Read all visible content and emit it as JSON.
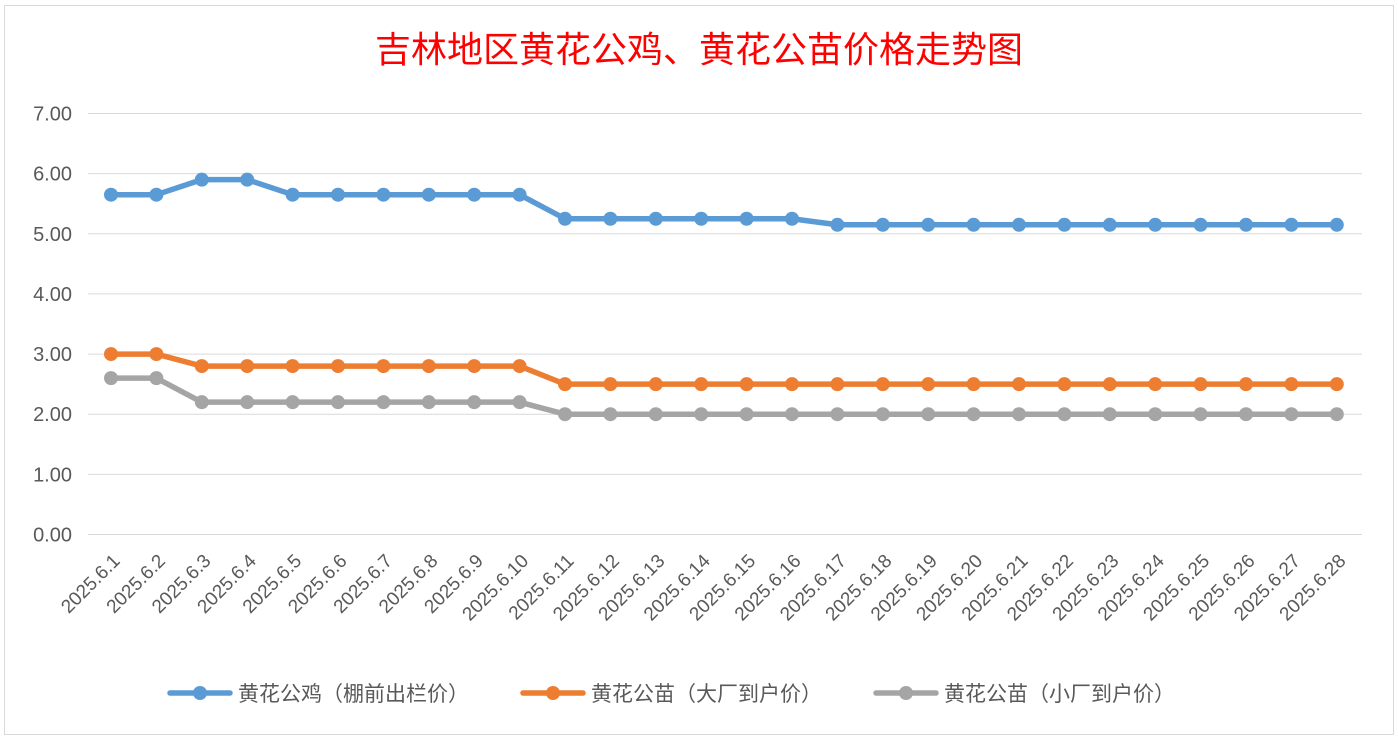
{
  "chart_data": {
    "type": "line",
    "title": "吉林地区黄花公鸡、黄花公苗价格走势图",
    "xlabel": "",
    "ylabel": "",
    "ylim": [
      0,
      7
    ],
    "y_ticks": [
      "0.00",
      "1.00",
      "2.00",
      "3.00",
      "4.00",
      "5.00",
      "6.00",
      "7.00"
    ],
    "grid": true,
    "legend_position": "bottom",
    "categories": [
      "2025.6.1",
      "2025.6.2",
      "2025.6.3",
      "2025.6.4",
      "2025.6.5",
      "2025.6.6",
      "2025.6.7",
      "2025.6.8",
      "2025.6.9",
      "2025.6.10",
      "2025.6.11",
      "2025.6.12",
      "2025.6.13",
      "2025.6.14",
      "2025.6.15",
      "2025.6.16",
      "2025.6.17",
      "2025.6.18",
      "2025.6.19",
      "2025.6.20",
      "2025.6.21",
      "2025.6.22",
      "2025.6.23",
      "2025.6.24",
      "2025.6.25",
      "2025.6.26",
      "2025.6.27",
      "2025.6.28"
    ],
    "series": [
      {
        "name": "黄花公鸡（棚前出栏价）",
        "color": "#5b9bd5",
        "values": [
          5.65,
          5.65,
          5.9,
          5.9,
          5.65,
          5.65,
          5.65,
          5.65,
          5.65,
          5.65,
          5.25,
          5.25,
          5.25,
          5.25,
          5.25,
          5.25,
          5.15,
          5.15,
          5.15,
          5.15,
          5.15,
          5.15,
          5.15,
          5.15,
          5.15,
          5.15,
          5.15,
          5.15
        ]
      },
      {
        "name": "黄花公苗（大厂到户价）",
        "color": "#ed7d31",
        "values": [
          3.0,
          3.0,
          2.8,
          2.8,
          2.8,
          2.8,
          2.8,
          2.8,
          2.8,
          2.8,
          2.5,
          2.5,
          2.5,
          2.5,
          2.5,
          2.5,
          2.5,
          2.5,
          2.5,
          2.5,
          2.5,
          2.5,
          2.5,
          2.5,
          2.5,
          2.5,
          2.5,
          2.5
        ]
      },
      {
        "name": "黄花公苗（小厂到户价）",
        "color": "#a5a5a5",
        "values": [
          2.6,
          2.6,
          2.2,
          2.2,
          2.2,
          2.2,
          2.2,
          2.2,
          2.2,
          2.2,
          2.0,
          2.0,
          2.0,
          2.0,
          2.0,
          2.0,
          2.0,
          2.0,
          2.0,
          2.0,
          2.0,
          2.0,
          2.0,
          2.0,
          2.0,
          2.0,
          2.0,
          2.0
        ]
      }
    ],
    "gridline_color": "#d9d9d9"
  }
}
